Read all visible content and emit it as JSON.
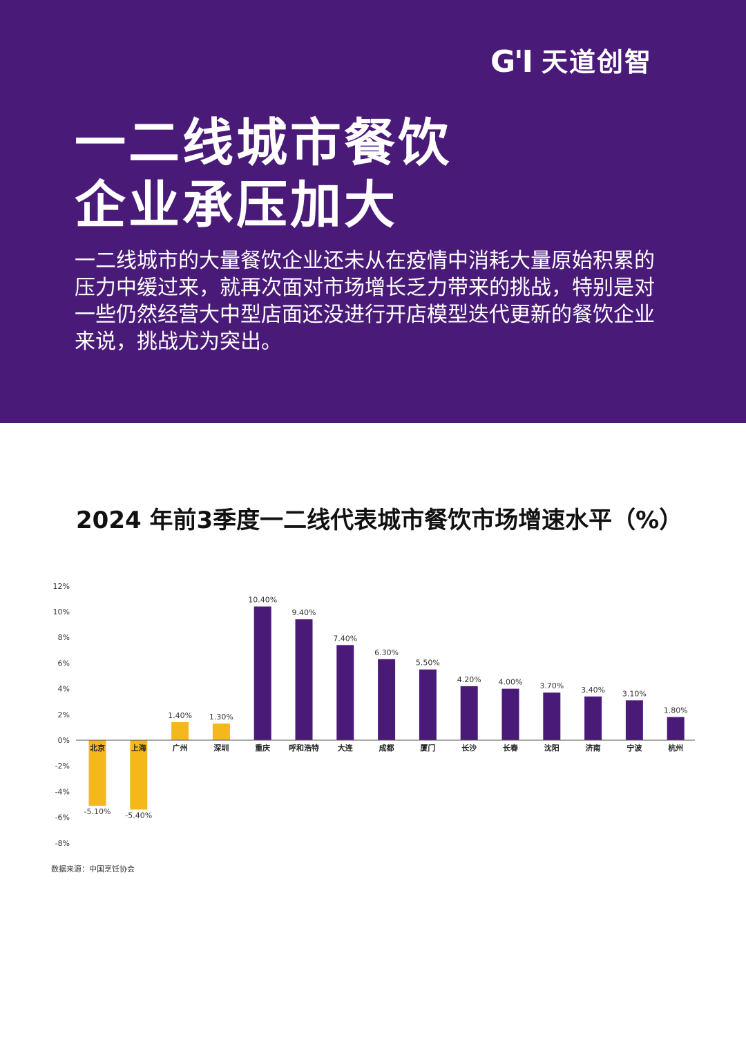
{
  "brand": {
    "mark": "G'I",
    "name": "天道创智"
  },
  "headline": {
    "line1": "一二线城市餐饮",
    "line2": "企业承压加大"
  },
  "intro": "一二线城市的大量餐饮企业还未从在疫情中消耗大量原始积累的压力中缓过来，就再次面对市场增长乏力带来的挑战，特别是对一些仍然经营大中型店面还没进行开店模型迭代更新的餐饮企业来说，挑战尤为突出。",
  "colors": {
    "hero_bg": "#4a1a79",
    "bar_tier1": "#f4b81c",
    "bar_tier2": "#4a1a79"
  },
  "chart_data": {
    "type": "bar",
    "title": "2024 年前3季度一二线代表城市餐饮市场增速水平（%）",
    "categories": [
      "北京",
      "上海",
      "广州",
      "深圳",
      "重庆",
      "呼和浩特",
      "大连",
      "成都",
      "厦门",
      "长沙",
      "长春",
      "沈阳",
      "济南",
      "宁波",
      "杭州"
    ],
    "values": [
      -5.1,
      -5.4,
      1.4,
      1.3,
      10.4,
      9.4,
      7.4,
      6.3,
      5.5,
      4.2,
      4.0,
      3.7,
      3.4,
      3.1,
      1.8
    ],
    "value_labels": [
      "-5.10%",
      "-5.40%",
      "1.40%",
      "1.30%",
      "10.40%",
      "9.40%",
      "7.40%",
      "6.30%",
      "5.50%",
      "4.20%",
      "4.00%",
      "3.70%",
      "3.40%",
      "3.10%",
      "1.80%"
    ],
    "bar_colors": [
      "#f4b81c",
      "#f4b81c",
      "#f4b81c",
      "#f4b81c",
      "#4a1a79",
      "#4a1a79",
      "#4a1a79",
      "#4a1a79",
      "#4a1a79",
      "#4a1a79",
      "#4a1a79",
      "#4a1a79",
      "#4a1a79",
      "#4a1a79",
      "#4a1a79"
    ],
    "yticks": [
      12,
      10,
      8,
      6,
      4,
      2,
      0,
      -2,
      -4,
      -6,
      -8
    ],
    "ytick_labels": [
      "12%",
      "10%",
      "8%",
      "6%",
      "4%",
      "2%",
      "0%",
      "-2%",
      "-4%",
      "-6%",
      "-8%"
    ],
    "ylim": [
      -8,
      12
    ],
    "xlabel": "",
    "ylabel": "",
    "grid": false,
    "legend": "none"
  },
  "source": "数据来源：中国烹饪协会"
}
